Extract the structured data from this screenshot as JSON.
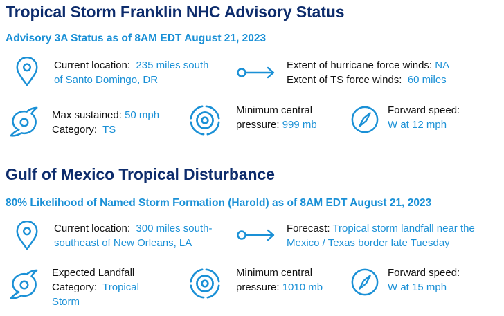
{
  "colors": {
    "navy": "#0d2c6c",
    "blue": "#1a90d6",
    "text": "#111111"
  },
  "section1": {
    "title": "Tropical Storm Franklin NHC Advisory Status",
    "subtitle": "Advisory 3A Status as of 8AM EDT August 21, 2023",
    "location": {
      "label": "Current location:",
      "value_line1": "235 miles south",
      "value_line2": "of Santo Domingo, DR",
      "icon": "map-pin-icon"
    },
    "winds": {
      "hurricane_label": "Extent of hurricane force winds:",
      "hurricane_value": "NA",
      "ts_label": "Extent of TS force winds:",
      "ts_value": "60 miles",
      "icon": "arrow-right-icon"
    },
    "intensity": {
      "max_label": "Max sustained:",
      "max_value": "50 mph",
      "category_label": "Category:",
      "category_value": "TS",
      "icon": "tropical-storm-icon"
    },
    "pressure": {
      "label_line1": "Minimum central",
      "label_line2": "pressure:",
      "value": "999 mb",
      "icon": "hurricane-icon"
    },
    "speed": {
      "label": "Forward speed:",
      "value": "W at 12 mph",
      "icon": "compass-icon"
    }
  },
  "section2": {
    "title": "Gulf of Mexico Tropical Disturbance",
    "subtitle": "80% Likelihood of Named Storm Formation (Harold) as of 8AM EDT August 21, 2023",
    "location": {
      "label": "Current location:",
      "value_line1": "300 miles south-",
      "value_line2": "southeast of New Orleans, LA",
      "icon": "map-pin-icon"
    },
    "forecast": {
      "label": "Forecast:",
      "value_line1": "Tropical storm landfall near the",
      "value_line2": "Mexico / Texas border late Tuesday",
      "icon": "arrow-right-icon"
    },
    "landfall": {
      "label_line1": "Expected Landfall",
      "category_label": "Category:",
      "category_value_line1": "Tropical",
      "category_value_line2": "Storm",
      "icon": "tropical-storm-icon"
    },
    "pressure": {
      "label_line1": "Minimum central",
      "label_line2": "pressure:",
      "value": "1010 mb",
      "icon": "hurricane-icon"
    },
    "speed": {
      "label": "Forward speed:",
      "value": "W at 15 mph",
      "icon": "compass-icon"
    }
  }
}
